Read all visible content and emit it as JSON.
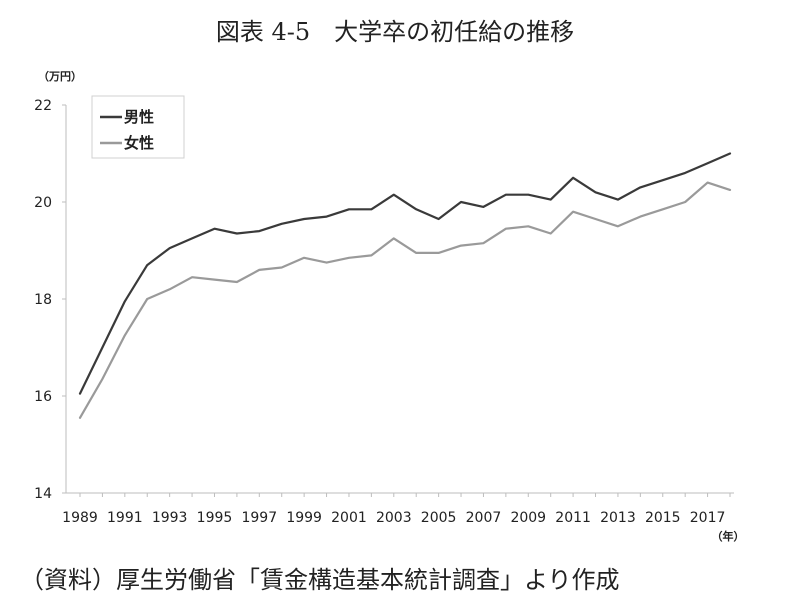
{
  "title": "図表 4-5　大学卒の初任給の推移",
  "source": "（資料）厚生労働省「賃金構造基本統計調査」より作成",
  "chart_data": {
    "type": "line",
    "y_unit_label": "（万円）",
    "x_unit_label": "（年）",
    "ylim": [
      14,
      22
    ],
    "yticks": [
      14,
      16,
      18,
      20,
      22
    ],
    "xlim": [
      1989,
      2018
    ],
    "xticks": [
      1989,
      1991,
      1993,
      1995,
      1997,
      1999,
      2001,
      2003,
      2005,
      2007,
      2009,
      2011,
      2013,
      2015,
      2017
    ],
    "grid": false,
    "legend_position": "top-left",
    "x": [
      1989,
      1990,
      1991,
      1992,
      1993,
      1994,
      1995,
      1996,
      1997,
      1998,
      1999,
      2000,
      2001,
      2002,
      2003,
      2004,
      2005,
      2006,
      2007,
      2008,
      2009,
      2010,
      2011,
      2012,
      2013,
      2014,
      2015,
      2016,
      2017,
      2018
    ],
    "series": [
      {
        "name": "男性",
        "color": "#3a3a3a",
        "values": [
          16.05,
          17.0,
          17.95,
          18.7,
          19.05,
          19.25,
          19.45,
          19.35,
          19.4,
          19.55,
          19.65,
          19.7,
          19.85,
          19.85,
          20.15,
          19.85,
          19.65,
          20.0,
          19.9,
          20.15,
          20.15,
          20.05,
          20.5,
          20.2,
          20.05,
          20.3,
          20.45,
          20.6,
          20.8,
          21.0
        ]
      },
      {
        "name": "女性",
        "color": "#9a9a9a",
        "values": [
          15.55,
          16.35,
          17.25,
          18.0,
          18.2,
          18.45,
          18.4,
          18.35,
          18.6,
          18.65,
          18.85,
          18.75,
          18.85,
          18.9,
          19.25,
          18.95,
          18.95,
          19.1,
          19.15,
          19.45,
          19.5,
          19.35,
          19.8,
          19.65,
          19.5,
          19.7,
          19.85,
          20.0,
          20.4,
          20.25
        ]
      }
    ]
  }
}
